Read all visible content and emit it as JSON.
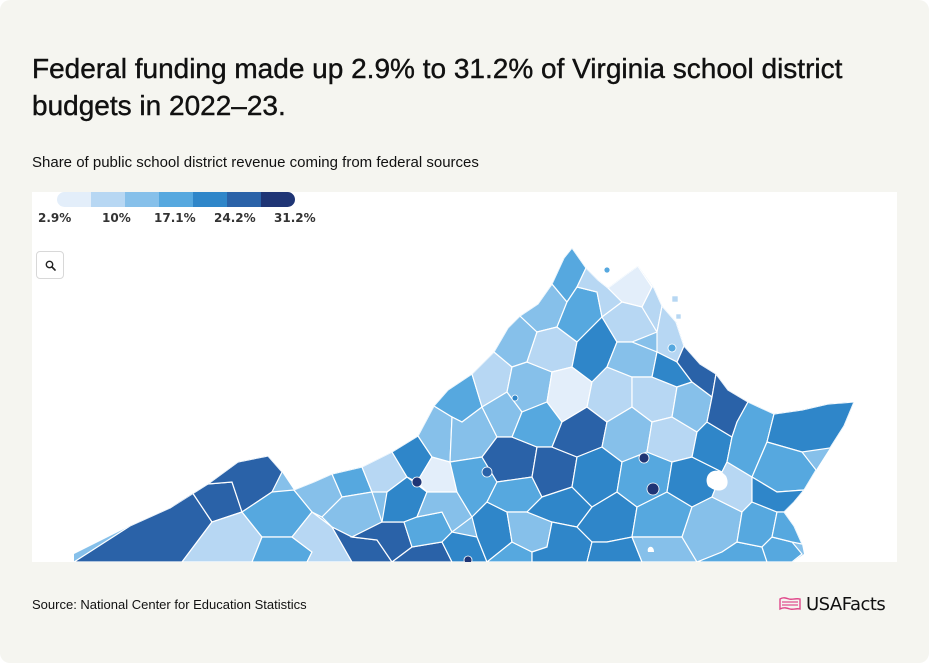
{
  "card": {
    "title": "Federal funding made up 2.9% to 31.2% of Virginia school district budgets in 2022–23.",
    "subtitle": "Share of public school district revenue coming from federal sources"
  },
  "legend": {
    "colors": [
      "#e3eefa",
      "#b7d7f3",
      "#86c0ea",
      "#56a8df",
      "#2f86c9",
      "#2a62a8",
      "#1f3575"
    ],
    "labels": [
      "2.9%",
      "10%",
      "17.1%",
      "24.2%",
      "31.2%"
    ]
  },
  "map": {
    "state": "Virginia",
    "zoom_icon": "search-icon"
  },
  "footer": {
    "source": "Source: National Center for Education Statistics",
    "brand": "USAFacts",
    "brand_icon": "usa-flag-map-icon",
    "brand_color": "#e0488b"
  }
}
